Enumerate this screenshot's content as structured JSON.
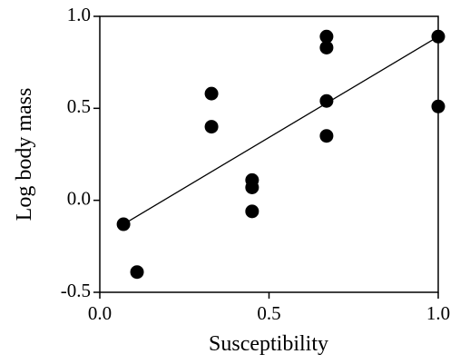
{
  "chart_data": {
    "type": "scatter",
    "x_label": "Susceptibility",
    "y_label": "Log body mass",
    "x": [
      0.07,
      0.11,
      0.33,
      0.33,
      0.45,
      0.45,
      0.45,
      0.67,
      0.67,
      0.67,
      0.67,
      1.0,
      1.0
    ],
    "y": [
      -0.13,
      -0.39,
      0.58,
      0.4,
      0.11,
      0.07,
      -0.06,
      0.89,
      0.83,
      0.54,
      0.35,
      0.89,
      0.51
    ],
    "color": "#000000",
    "trendline": {
      "x": [
        0.07,
        1.0
      ],
      "y": [
        -0.13,
        0.89
      ]
    },
    "xlim": [
      0,
      1
    ],
    "ylim": [
      -0.5,
      1.0
    ],
    "xticks": [
      {
        "value": 0,
        "label": "0.0"
      },
      {
        "value": 0.5,
        "label": "0.5"
      },
      {
        "value": 1,
        "label": "1.0"
      }
    ],
    "yticks": [
      {
        "value": -0.5,
        "label": "-0.5"
      },
      {
        "value": 0,
        "label": "0.0"
      },
      {
        "value": 0.5,
        "label": "0.5"
      },
      {
        "value": 1,
        "label": "1.0"
      }
    ],
    "grid": false
  }
}
